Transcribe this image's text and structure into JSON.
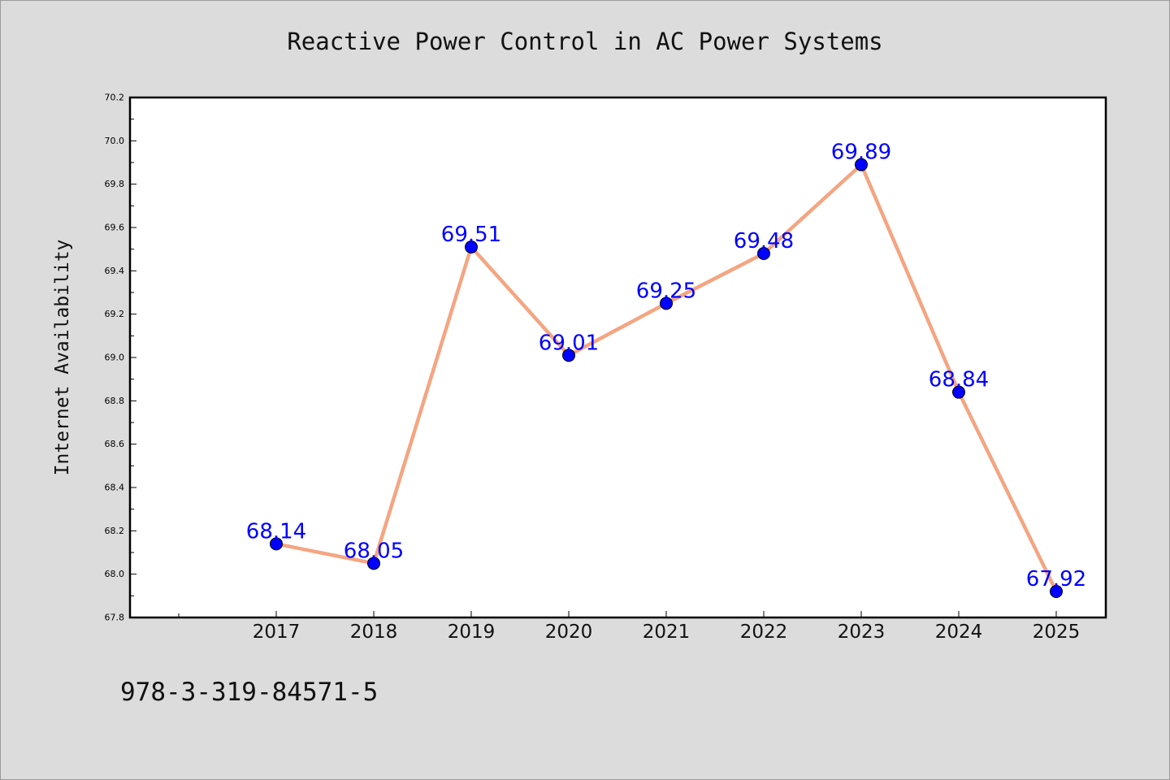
{
  "chart_data": {
    "type": "line",
    "title": "Reactive Power Control in AC Power Systems",
    "xlabel": "",
    "ylabel": "Internet Availability",
    "categories": [
      "2017",
      "2018",
      "2019",
      "2020",
      "2021",
      "2022",
      "2023",
      "2024",
      "2025"
    ],
    "series": [
      {
        "values": [
          68.14,
          68.05,
          69.51,
          69.01,
          69.25,
          69.48,
          69.89,
          68.84,
          67.92
        ],
        "data_labels": [
          "68.14",
          "68.05",
          "69.51",
          "69.01",
          "69.25",
          "69.48",
          "69.89",
          "68.84",
          "67.92"
        ]
      }
    ],
    "ylim": [
      67.8,
      70.2
    ],
    "yticks": [
      "67.8",
      "68.0",
      "68.2",
      "68.4",
      "68.6",
      "68.8",
      "69.0",
      "69.2",
      "69.4",
      "69.6",
      "69.8",
      "70.0",
      "70.2"
    ],
    "grid": false,
    "legend": "none",
    "colors": {
      "line": "#f4a582",
      "marker": "#0000ff",
      "label": "#0000ff",
      "background": "#dcdcdc",
      "plot_background": "#ffffff"
    }
  },
  "footer": {
    "isbn": "978-3-319-84571-5"
  }
}
